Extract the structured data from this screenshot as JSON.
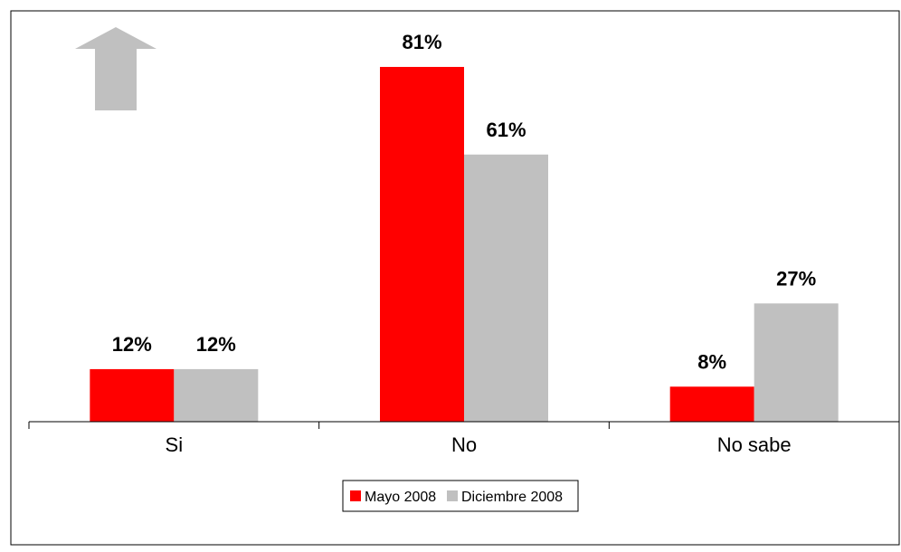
{
  "chart_data": {
    "type": "bar",
    "title": "",
    "xlabel": "",
    "ylabel": "",
    "categories": [
      "Si",
      "No",
      "No sabe"
    ],
    "series": [
      {
        "name": "Mayo 2008",
        "values": [
          12,
          81,
          8
        ],
        "labels": [
          "12%",
          "81%",
          "8%"
        ],
        "color": "#ff0000"
      },
      {
        "name": "Diciembre 2008",
        "values": [
          12,
          61,
          27
        ],
        "labels": [
          "12%",
          "61%",
          "27%"
        ],
        "color": "#c0c0c0"
      }
    ],
    "ylim": [
      0,
      96
    ],
    "grid": false,
    "legend_position": "bottom",
    "annotation_icon": "up-arrow-icon",
    "annotation_color": "#c0c0c0"
  }
}
